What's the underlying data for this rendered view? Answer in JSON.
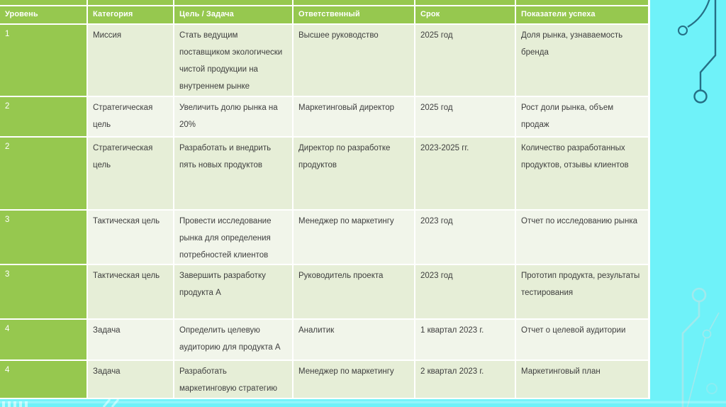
{
  "table": {
    "columns": [
      {
        "key": "level",
        "label": "Уровень"
      },
      {
        "key": "category",
        "label": "Категория"
      },
      {
        "key": "goal",
        "label": "Цель / Задача"
      },
      {
        "key": "owner",
        "label": "Ответственный"
      },
      {
        "key": "deadline",
        "label": "Срок"
      },
      {
        "key": "kpi",
        "label": "Показатели успеха"
      }
    ],
    "rows": [
      {
        "level": "1",
        "category": "Миссия",
        "goal": "Стать ведущим поставщиком экологически чистой продукции на внутреннем рынке",
        "owner": "Высшее руководство",
        "deadline": "2025 год",
        "kpi": "Доля рынка, узнаваемость бренда"
      },
      {
        "level": "2",
        "category": "Стратегическая цель",
        "goal": "Увеличить долю рынка на 20%",
        "owner": "Маркетинговый директор",
        "deadline": "2025 год",
        "kpi": "Рост доли рынка, объем продаж"
      },
      {
        "level": "2",
        "category": "Стратегическая цель",
        "goal": "Разработать и внедрить пять новых продуктов",
        "owner": "Директор по разработке продуктов",
        "deadline": "2023-2025 гг.",
        "kpi": "Количество разработанных продуктов, отзывы клиентов"
      },
      {
        "level": "3",
        "category": "Тактическая цель",
        "goal": "Провести исследование рынка для определения потребностей клиентов",
        "owner": "Менеджер по маркетингу",
        "deadline": "2023 год",
        "kpi": "Отчет по исследованию рынка"
      },
      {
        "level": "3",
        "category": "Тактическая цель",
        "goal": "Завершить разработку продукта А",
        "owner": "Руководитель проекта",
        "deadline": "2023 год",
        "kpi": "Прототип продукта, результаты тестирования"
      },
      {
        "level": "4",
        "category": "Задача",
        "goal": "Определить целевую аудиторию для продукта А",
        "owner": "Аналитик",
        "deadline": "1 квартал 2023 г.",
        "kpi": "Отчет о целевой аудитории"
      },
      {
        "level": "4",
        "category": "Задача",
        "goal": "Разработать маркетинговую стратегию для продукта А",
        "owner": "Менеджер по маркетингу",
        "deadline": "2 квартал 2023 г.",
        "kpi": "Маркетинговый план"
      }
    ]
  },
  "colors": {
    "accent_green": "#96C84F",
    "band_dark": "#E6EED7",
    "band_light": "#F1F5EA",
    "background_cyan": "#6FF2F9",
    "circuit_teal": "#256F85",
    "circuit_ghost": "#AEE7EA",
    "body_text": "#3E3E3E",
    "header_text": "#FFFFFF"
  }
}
